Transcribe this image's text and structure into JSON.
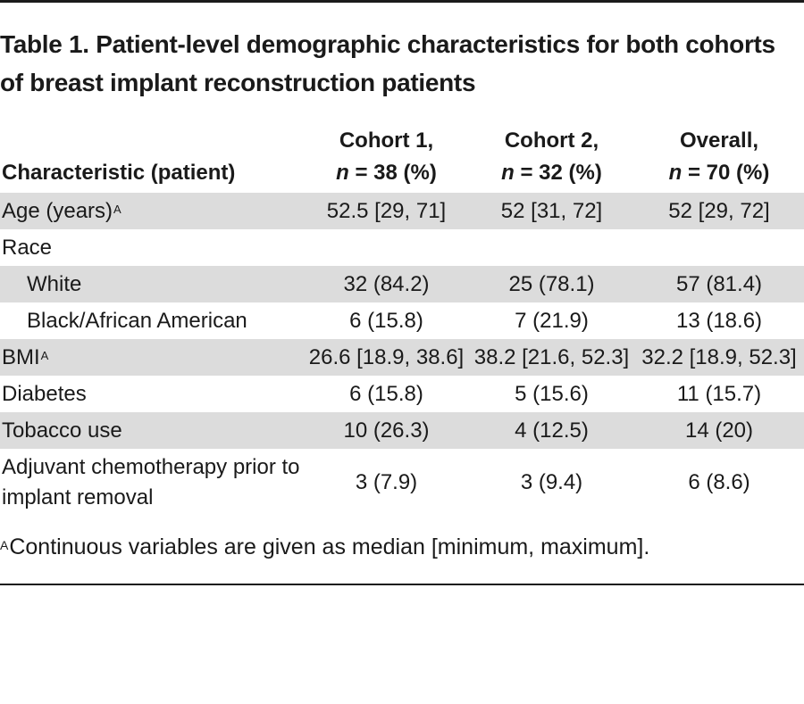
{
  "title": "Table 1. Patient-level demographic characteristics for both cohorts of breast implant reconstruction patients",
  "header": {
    "characteristic": "Characteristic (patient)",
    "cohort1_line1": "Cohort 1,",
    "cohort1_n": "n",
    "cohort1_rest": " = 38 (%)",
    "cohort2_line1": "Cohort 2,",
    "cohort2_n": "n",
    "cohort2_rest": " = 32 (%)",
    "overall_line1": "Overall,",
    "overall_n": "n",
    "overall_rest": " = 70 (%)"
  },
  "rows": [
    {
      "label": "Age (years)",
      "sup": "A",
      "cohort1": "52.5 [29, 71]",
      "cohort2": "52 [31, 72]",
      "overall": "52 [29, 72]"
    },
    {
      "label": "Race",
      "sup": "",
      "cohort1": "",
      "cohort2": "",
      "overall": ""
    },
    {
      "label": "White",
      "sup": "",
      "cohort1": "32 (84.2)",
      "cohort2": "25 (78.1)",
      "overall": "57 (81.4)"
    },
    {
      "label": "Black/African American",
      "sup": "",
      "cohort1": "6 (15.8)",
      "cohort2": "7 (21.9)",
      "overall": "13 (18.6)"
    },
    {
      "label": "BMI",
      "sup": "A",
      "cohort1": "26.6 [18.9, 38.6]",
      "cohort2": "38.2 [21.6, 52.3]",
      "overall": "32.2 [18.9, 52.3]"
    },
    {
      "label": "Diabetes",
      "sup": "",
      "cohort1": "6 (15.8)",
      "cohort2": "5 (15.6)",
      "overall": "11 (15.7)"
    },
    {
      "label": "Tobacco use",
      "sup": "",
      "cohort1": "10 (26.3)",
      "cohort2": "4 (12.5)",
      "overall": "14 (20)"
    },
    {
      "label": "Adjuvant chemotherapy prior to implant removal",
      "sup": "",
      "cohort1": "3 (7.9)",
      "cohort2": "3 (9.4)",
      "overall": "6 (8.6)"
    }
  ],
  "footnote": {
    "marker": "A",
    "text": "Continuous variables are given as median [minimum, maximum]."
  }
}
